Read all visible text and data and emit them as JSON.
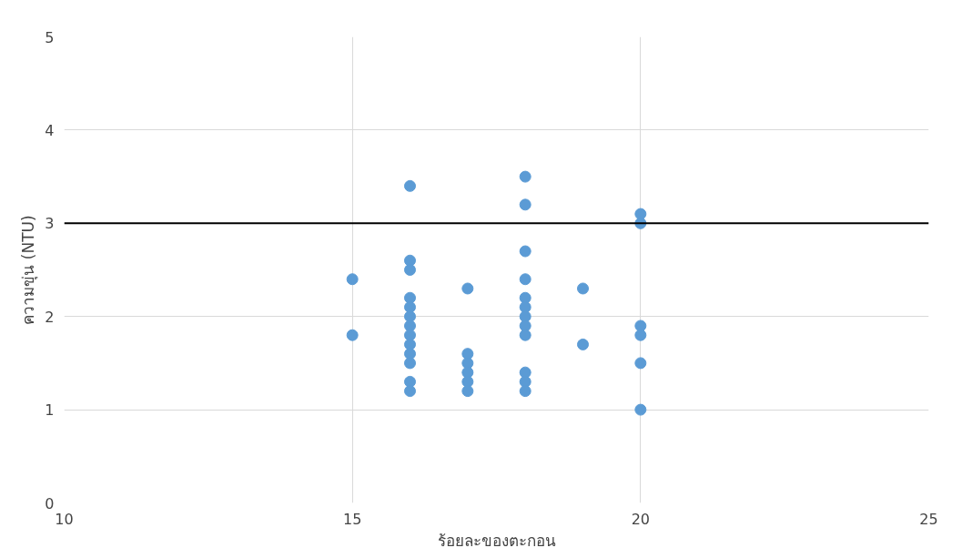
{
  "chart_data": {
    "type": "scatter",
    "xlabel": "ร้อยละของตะกอน",
    "ylabel": "ความขุ่น (NTU)",
    "series": [
      {
        "color": "#5b9bd5",
        "x": [
          15,
          15,
          16,
          16,
          16,
          16,
          16,
          16,
          16,
          16,
          16,
          16,
          16,
          16,
          16,
          17,
          17,
          17,
          17,
          17,
          17,
          18,
          18,
          18,
          18,
          18,
          18,
          18,
          18,
          18,
          18,
          18,
          18,
          19,
          19,
          20,
          20,
          20,
          20,
          20,
          20
        ],
        "values": [
          2.4,
          1.8,
          3.4,
          2.6,
          2.5,
          2.2,
          2.1,
          2.0,
          1.9,
          1.8,
          1.7,
          1.6,
          1.5,
          1.3,
          1.2,
          2.3,
          1.6,
          1.5,
          1.4,
          1.3,
          1.2,
          3.5,
          3.2,
          2.7,
          2.4,
          2.2,
          2.1,
          2.0,
          1.9,
          1.8,
          1.4,
          1.3,
          1.2,
          2.3,
          1.7,
          3.1,
          3.0,
          1.9,
          1.8,
          1.5,
          1.0
        ]
      }
    ],
    "xlim": [
      10,
      25
    ],
    "xticks": [
      10,
      15,
      20,
      25
    ],
    "ylim": [
      0,
      5
    ],
    "yticks": [
      0,
      1,
      2,
      3,
      4,
      5
    ],
    "grid": true,
    "marker": "circle",
    "ref_lines": [
      {
        "axis": "y",
        "value": 3,
        "color": "#000000"
      }
    ]
  }
}
